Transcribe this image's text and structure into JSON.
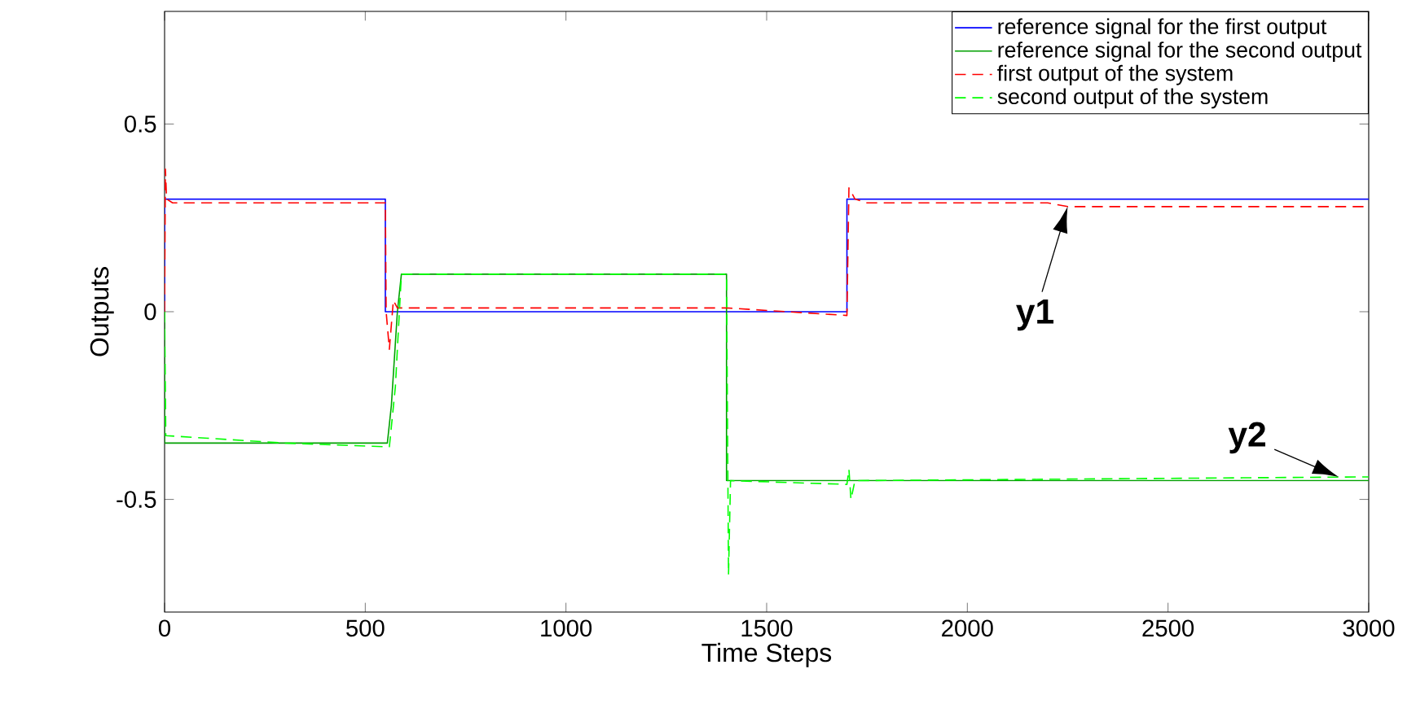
{
  "chart_data": {
    "type": "line",
    "xlabel": "Time Steps",
    "ylabel": "Outputs",
    "xlim": [
      0,
      3000
    ],
    "ylim": [
      -0.8,
      0.8
    ],
    "xticks": [
      0,
      500,
      1000,
      1500,
      2000,
      2500,
      3000
    ],
    "yticks": [
      -0.5,
      0,
      0.5
    ],
    "legend": "top right",
    "grid": false,
    "series": [
      {
        "name": "reference signal for the first output",
        "color": "#0000ff",
        "line_style": "solid",
        "x": [
          0,
          0,
          550,
          550,
          1700,
          1700,
          3000
        ],
        "values": [
          0,
          0.3,
          0.3,
          0,
          0,
          0.3,
          0.3
        ]
      },
      {
        "name": "reference signal for the second output",
        "color": "#00a000",
        "line_style": "solid",
        "x": [
          0,
          0,
          555,
          565,
          580,
          590,
          1400,
          1400,
          3000
        ],
        "values": [
          0,
          -0.35,
          -0.35,
          -0.25,
          0.0,
          0.1,
          0.1,
          -0.45,
          -0.45
        ]
      },
      {
        "name": "first output of the system",
        "color": "#ff0000",
        "line_style": "dashed",
        "x": [
          0,
          2,
          5,
          20,
          250,
          550,
          552,
          560,
          570,
          580,
          1400,
          1700,
          1705,
          1720,
          1750,
          2200,
          2250,
          3000
        ],
        "values": [
          0,
          0.38,
          0.3,
          0.29,
          0.29,
          0.29,
          0.0,
          -0.1,
          0.03,
          0.01,
          0.01,
          -0.01,
          0.33,
          0.3,
          0.29,
          0.29,
          0.28,
          0.28
        ]
      },
      {
        "name": "second output of the system",
        "color": "#00ff00",
        "line_style": "dashed",
        "x": [
          0,
          3,
          300,
          560,
          575,
          590,
          1400,
          1405,
          1410,
          1700,
          1705,
          1710,
          1720,
          3000
        ],
        "values": [
          0,
          -0.33,
          -0.35,
          -0.36,
          -0.2,
          0.1,
          0.1,
          -0.7,
          -0.45,
          -0.46,
          -0.42,
          -0.5,
          -0.45,
          -0.44
        ]
      }
    ],
    "annotations": [
      {
        "text": "y1",
        "x": 2250,
        "y": 0.28
      },
      {
        "text": "y2",
        "x": 2925,
        "y": -0.44
      }
    ]
  }
}
